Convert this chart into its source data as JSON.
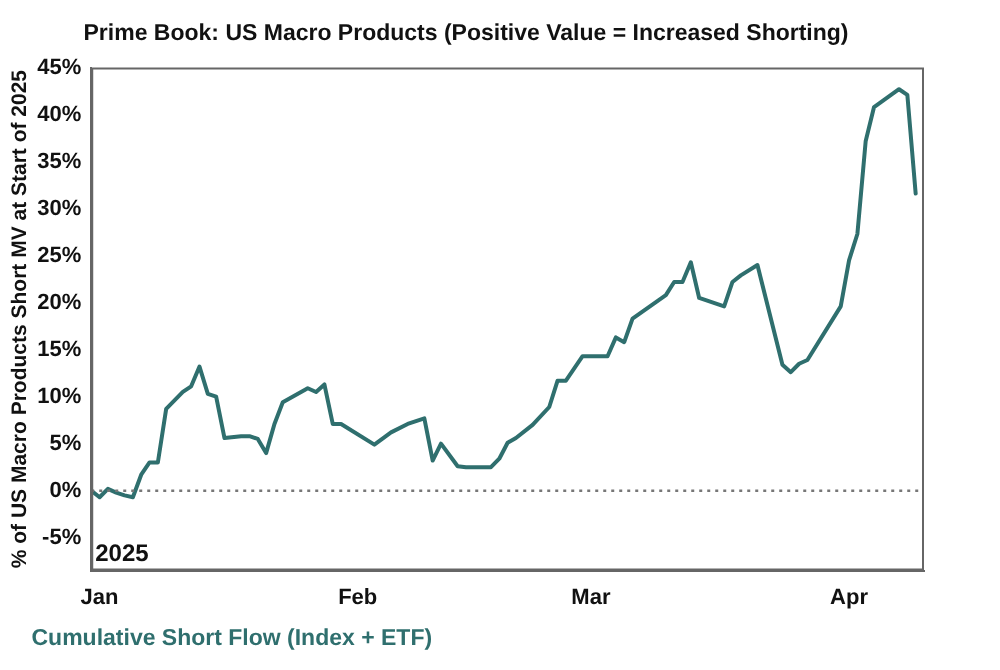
{
  "chart_data": {
    "type": "line",
    "title": "Prime Book: US Macro Products (Positive Value = Increased Shorting)",
    "ylabel": "% of US Macro Products Short MV at Start of 2025",
    "annotations": [
      "2025"
    ],
    "x": [
      "2024-12-31",
      "2025-01-01",
      "2025-01-02",
      "2025-01-03",
      "2025-01-04",
      "2025-01-05",
      "2025-01-06",
      "2025-01-07",
      "2025-01-08",
      "2025-01-09",
      "2025-01-11",
      "2025-01-12",
      "2025-01-13",
      "2025-01-14",
      "2025-01-15",
      "2025-01-16",
      "2025-01-18",
      "2025-01-19",
      "2025-01-20",
      "2025-01-21",
      "2025-01-22",
      "2025-01-23",
      "2025-01-26",
      "2025-01-27",
      "2025-01-28",
      "2025-01-29",
      "2025-01-30",
      "2025-02-03",
      "2025-02-05",
      "2025-02-07",
      "2025-02-09",
      "2025-02-10",
      "2025-02-11",
      "2025-02-13",
      "2025-02-14",
      "2025-02-17",
      "2025-02-18",
      "2025-02-19",
      "2025-02-20",
      "2025-02-22",
      "2025-02-24",
      "2025-02-25",
      "2025-02-26",
      "2025-02-28",
      "2025-03-03",
      "2025-03-04",
      "2025-03-05",
      "2025-03-06",
      "2025-03-10",
      "2025-03-11",
      "2025-03-12",
      "2025-03-13",
      "2025-03-14",
      "2025-03-17",
      "2025-03-18",
      "2025-03-19",
      "2025-03-21",
      "2025-03-24",
      "2025-03-25",
      "2025-03-26",
      "2025-03-27",
      "2025-03-31",
      "2025-04-01",
      "2025-04-02",
      "2025-04-03",
      "2025-04-04",
      "2025-04-07",
      "2025-04-08",
      "2025-04-09"
    ],
    "series": [
      {
        "name": "Cumulative Short Flow (Index + ETF)",
        "color": "#2f6f6e",
        "values": [
          0,
          -0.7,
          0.2,
          -0.2,
          -0.5,
          -0.7,
          1.7,
          3.0,
          3.0,
          8.7,
          10.5,
          11.1,
          13.2,
          10.3,
          10.0,
          5.6,
          5.8,
          5.8,
          5.5,
          4.0,
          7.1,
          9.4,
          10.9,
          10.5,
          11.3,
          7.1,
          7.1,
          4.9,
          6.2,
          7.1,
          7.7,
          3.2,
          5.0,
          2.6,
          2.5,
          2.5,
          3.4,
          5.1,
          5.6,
          7.0,
          8.9,
          11.7,
          11.7,
          14.3,
          14.3,
          16.3,
          15.8,
          18.3,
          20.8,
          22.2,
          22.2,
          24.3,
          20.5,
          19.6,
          22.2,
          22.9,
          24.0,
          13.4,
          12.6,
          13.5,
          13.9,
          19.6,
          24.5,
          27.3,
          37.2,
          40.8,
          42.7,
          42.1,
          31.6
        ]
      }
    ],
    "xlim": [
      "2024-12-31",
      "2025-04-10"
    ],
    "xticks": [
      {
        "value": "2025-01-01",
        "label": "Jan"
      },
      {
        "value": "2025-02-01",
        "label": "Feb"
      },
      {
        "value": "2025-03-01",
        "label": "Mar"
      },
      {
        "value": "2025-04-01",
        "label": "Apr"
      }
    ],
    "ylim": [
      -8.5,
      45
    ],
    "yticks": [
      {
        "value": -5,
        "label": "-5%"
      },
      {
        "value": 0,
        "label": "0%"
      },
      {
        "value": 5,
        "label": "5%"
      },
      {
        "value": 10,
        "label": "10%"
      },
      {
        "value": 15,
        "label": "15%"
      },
      {
        "value": 20,
        "label": "20%"
      },
      {
        "value": 25,
        "label": "25%"
      },
      {
        "value": 30,
        "label": "30%"
      },
      {
        "value": 35,
        "label": "35%"
      },
      {
        "value": 40,
        "label": "40%"
      },
      {
        "value": 45,
        "label": "45%"
      }
    ],
    "ref_lines": [
      {
        "axis": "y",
        "value": 0,
        "color": "#777777",
        "line_style": "dotted"
      }
    ],
    "grid": false,
    "legend": "bottom left",
    "marker": "none",
    "line_style": "solid"
  }
}
